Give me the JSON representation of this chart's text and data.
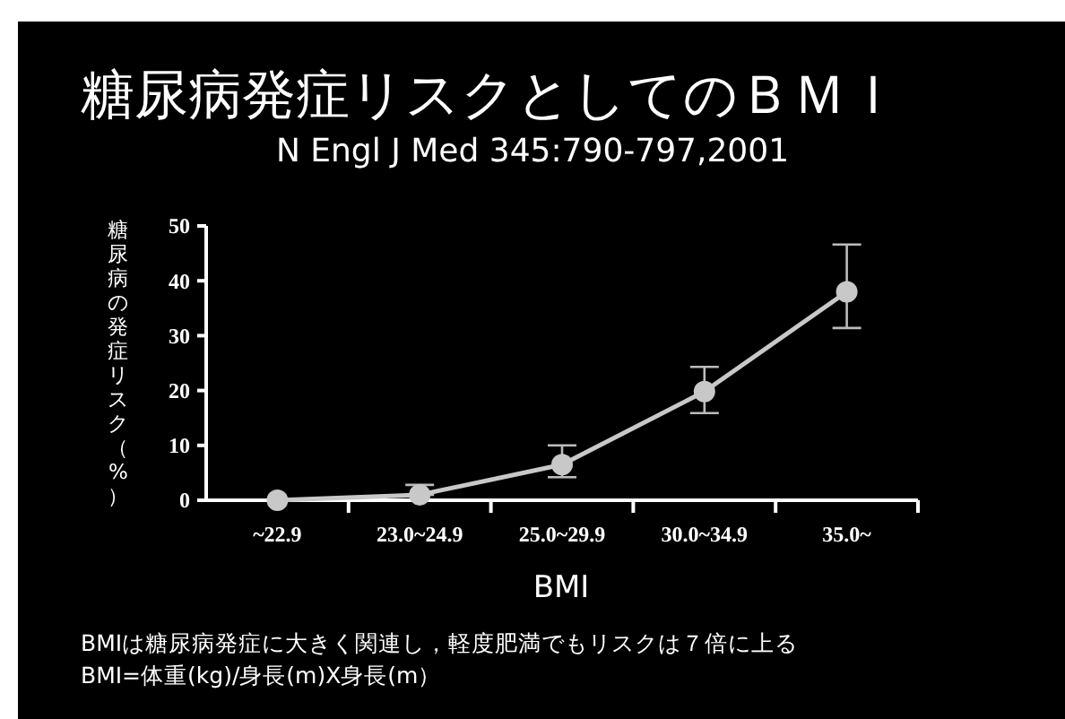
{
  "chart_data": {
    "type": "line",
    "title": "糖尿病発症リスクとしてのＢＭＩ",
    "subtitle": "N Engl J Med 345:790-797,2001",
    "xlabel": "BMI",
    "ylabel": "糖尿病の発症リスク（%）",
    "categories": [
      "~22.9",
      "23.0~24.9",
      "25.0~29.9",
      "30.0~34.9",
      "35.0~"
    ],
    "series": [
      {
        "color": "#c8c8c8",
        "values": [
          0,
          1,
          6.5,
          19.8,
          38
        ],
        "errors": [
          null,
          [
            1,
            2.8
          ],
          [
            4.2,
            10
          ],
          [
            15.9,
            24.3
          ],
          [
            31.4,
            46.6
          ]
        ]
      }
    ],
    "ylim": [
      0,
      50
    ],
    "yticks": [
      0,
      10,
      20,
      30,
      40,
      50
    ],
    "grid": false,
    "marker": "circle",
    "line_style": "solid",
    "annotations": [
      "BMIは糖尿病発症に大きく関連し，軽度肥満でもリスクは７倍に上る",
      "BMI=体重(kg)/身長(m)X身長(m）"
    ]
  }
}
